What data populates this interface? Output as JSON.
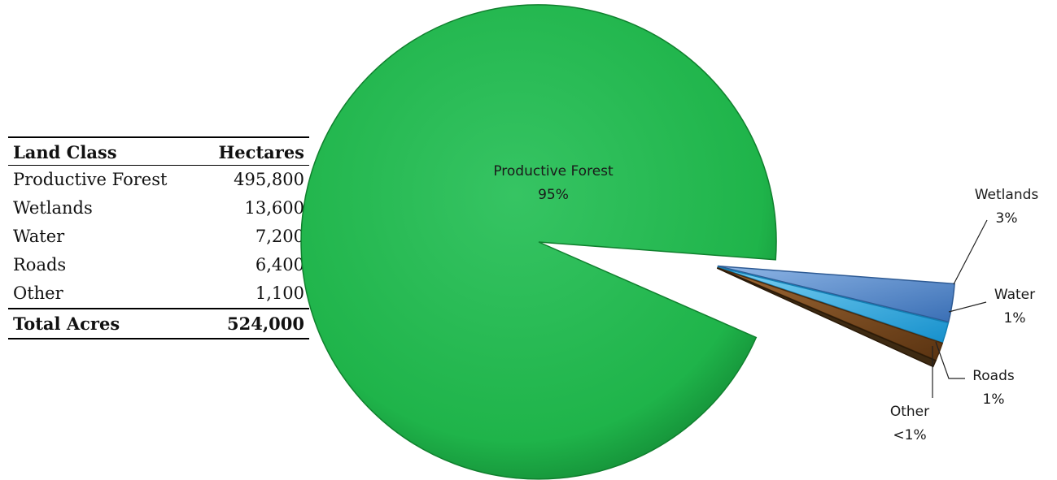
{
  "table": {
    "headers": [
      "Land Class",
      "Hectares"
    ],
    "rows": [
      [
        "Productive Forest",
        "495,800"
      ],
      [
        "Wetlands",
        "13,600"
      ],
      [
        "Water",
        "7,200"
      ],
      [
        "Roads",
        "6,400"
      ],
      [
        "Other",
        "1,100"
      ]
    ],
    "total": [
      "Total Acres",
      "524,000"
    ]
  },
  "chart_data": {
    "type": "pie",
    "title": "",
    "slices": [
      {
        "name": "Productive Forest",
        "value": 495800,
        "label_pct": "95%",
        "color": "#1fb44a"
      },
      {
        "name": "Wetlands",
        "value": 13600,
        "label_pct": "3%",
        "color": "#4f86c9"
      },
      {
        "name": "Water",
        "value": 7200,
        "label_pct": "1%",
        "color": "#27a7e2"
      },
      {
        "name": "Roads",
        "value": 6400,
        "label_pct": "1%",
        "color": "#7a4a1b"
      },
      {
        "name": "Other",
        "value": 1100,
        "label_pct": "<1%",
        "color": "#3e2a12"
      }
    ],
    "legend": "none"
  }
}
